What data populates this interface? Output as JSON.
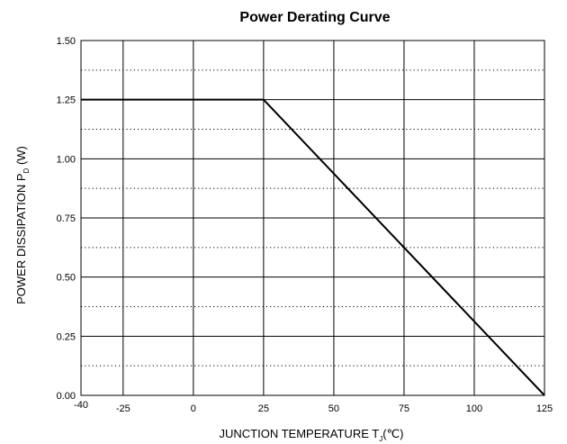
{
  "chart_data": {
    "type": "line",
    "title": "Power Derating Curve",
    "xlabel": {
      "prefix": "JUNCTION TEMPERATURE  T",
      "subscript": "J",
      "suffix": "(℃)"
    },
    "ylabel": {
      "prefix": "POWER DISSIPATION P",
      "subscript": "D",
      "suffix": " (W)"
    },
    "xlim": [
      -40,
      125
    ],
    "ylim": [
      0,
      1.5
    ],
    "x_ticks": [
      -40,
      -25,
      0,
      25,
      50,
      75,
      100,
      125
    ],
    "x_tick_labels": [
      "-40",
      "-25",
      "0",
      "25",
      "50",
      "75",
      "100",
      "125"
    ],
    "y_ticks": [
      0,
      0.25,
      0.5,
      0.75,
      1.0,
      1.25,
      1.5
    ],
    "y_tick_labels": [
      "0.00",
      "0.25",
      "0.50",
      "0.75",
      "1.00",
      "1.25",
      "1.50"
    ],
    "y_minor_gridlines": [
      0.125,
      0.375,
      0.625,
      0.875,
      1.125,
      1.375
    ],
    "grid": true,
    "series": [
      {
        "points": [
          {
            "x": -40,
            "y": 1.25
          },
          {
            "x": 25,
            "y": 1.25
          },
          {
            "x": 125,
            "y": 0
          }
        ],
        "color": "#000000"
      }
    ]
  }
}
